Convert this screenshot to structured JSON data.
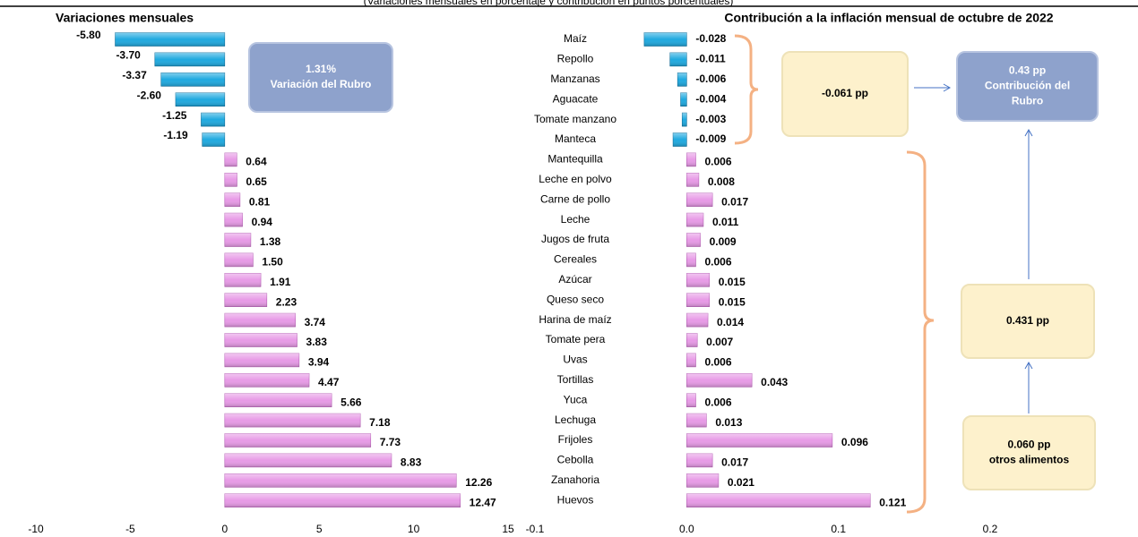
{
  "subtitle": "(Variaciones mensuales en porcentaje y contribución en puntos porcentuales)",
  "chart_data": [
    {
      "type": "bar",
      "orientation": "horizontal",
      "title": "Variaciones mensuales",
      "categories": [
        "Maíz",
        "Repollo",
        "Manzanas",
        "Aguacate",
        "Tomate manzano",
        "Manteca",
        "Mantequilla",
        "Leche en polvo",
        "Carne de pollo",
        "Leche",
        "Jugos de fruta",
        "Cereales",
        "Azúcar",
        "Queso seco",
        "Harina de maíz",
        "Tomate pera",
        "Uvas",
        "Tortillas",
        "Yuca",
        "Lechuga",
        "Frijoles",
        "Cebolla",
        "Zanahoria",
        "Huevos"
      ],
      "values": [
        -5.8,
        -3.7,
        -3.37,
        -2.6,
        -1.25,
        -1.19,
        0.64,
        0.65,
        0.81,
        0.94,
        1.38,
        1.5,
        1.91,
        2.23,
        3.74,
        3.83,
        3.94,
        4.47,
        5.66,
        7.18,
        7.73,
        8.83,
        12.26,
        12.47
      ],
      "value_labels": [
        "-5.80",
        "-3.70",
        "-3.37",
        "-2.60",
        "-1.25",
        "-1.19",
        "0.64",
        "0.65",
        "0.81",
        "0.94",
        "1.38",
        "1.50",
        "1.91",
        "2.23",
        "3.74",
        "3.83",
        "3.94",
        "4.47",
        "5.66",
        "7.18",
        "7.73",
        "8.83",
        "12.26",
        "12.47"
      ],
      "color": "#e79ae6",
      "negative_color": "#1fa9df",
      "xlim": [
        -10,
        15
      ],
      "xticks": [
        -10,
        -5,
        0,
        5,
        10,
        15
      ]
    },
    {
      "type": "bar",
      "orientation": "horizontal",
      "title": "Contribución a la inflación mensual de octubre de 2022",
      "values": [
        -0.028,
        -0.011,
        -0.006,
        -0.004,
        -0.003,
        -0.009,
        0.006,
        0.008,
        0.017,
        0.011,
        0.009,
        0.006,
        0.015,
        0.015,
        0.014,
        0.007,
        0.006,
        0.043,
        0.006,
        0.013,
        0.096,
        0.017,
        0.021,
        0.121
      ],
      "color": "#e79ae6",
      "negative_color": "#1fa9df",
      "xlim": [
        -0.1,
        0.2
      ],
      "xticks": [
        -0.1,
        {
          "value": 0,
          "label": "0.0"
        },
        0.1,
        0.2
      ]
    }
  ],
  "annotations": [
    {
      "lines": [
        "1.31%",
        "Variación del Rubro"
      ]
    },
    {
      "lines": [
        "-0.061  pp"
      ]
    },
    {
      "lines": [
        "0.43 pp",
        "Contribución del",
        "Rubro"
      ]
    },
    {
      "lines": [
        "0.431  pp"
      ]
    },
    {
      "lines": [
        "0.060  pp",
        "otros alimentos"
      ]
    }
  ]
}
